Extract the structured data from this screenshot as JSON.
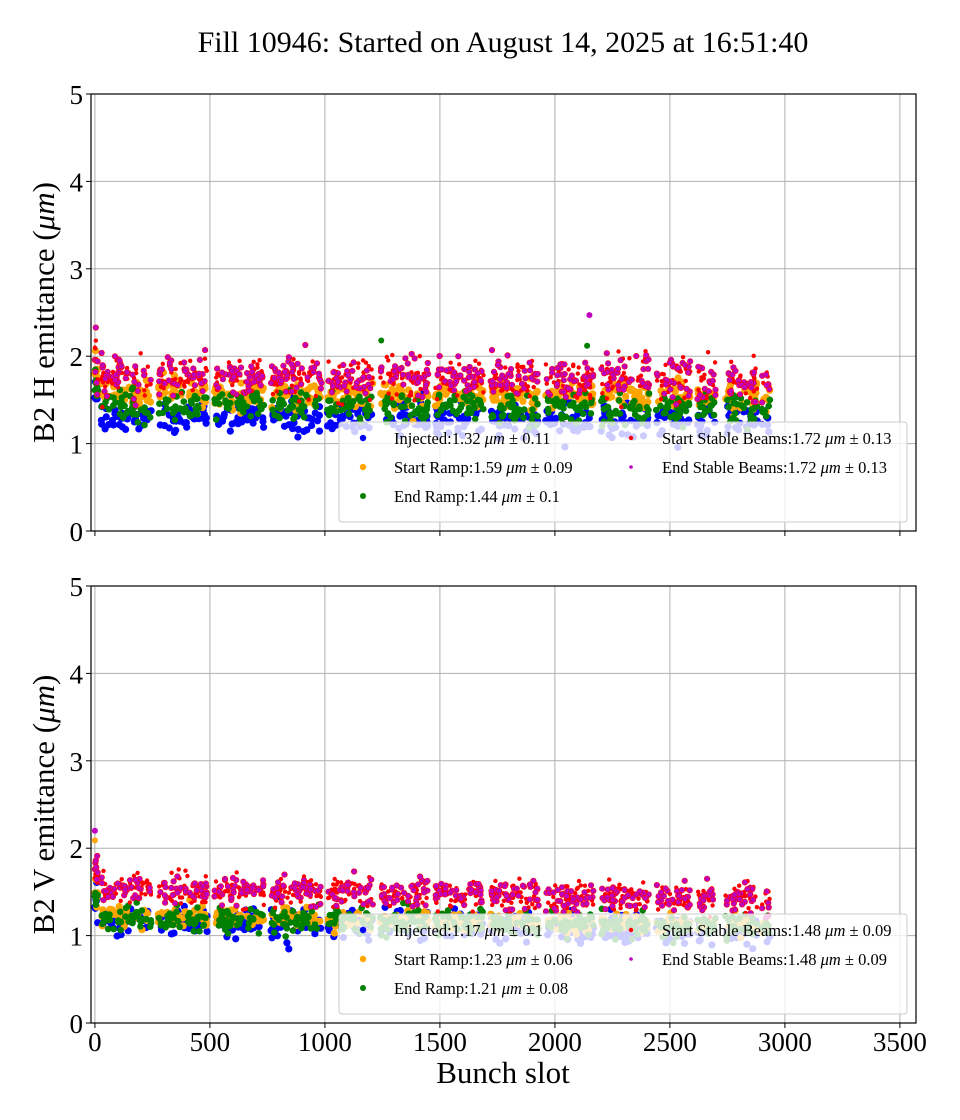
{
  "chart_data": [
    {
      "type": "scatter",
      "title": "Fill 10946: Started on August 14, 2025 at 16:51:40",
      "xlabel": "",
      "ylabel": "B2 H emittance (μm)",
      "ylabel_prefix": "B2 H emittance (",
      "ylabel_unit": "μm",
      "ylabel_suffix": ")",
      "xlim": [
        -17,
        3570
      ],
      "ylim": [
        0,
        5
      ],
      "xticks": [
        0,
        500,
        1000,
        1500,
        2000,
        2500,
        3000,
        3500
      ],
      "xtick_labels_visible": false,
      "yticks": [
        0,
        1,
        2,
        3,
        4,
        5
      ],
      "grid": true,
      "legend_position": "lower-right",
      "series": [
        {
          "name": "Injected",
          "legend_label": "Injected:1.32",
          "mean": 1.32,
          "std": 0.11,
          "unit": "μm",
          "color": "#0000ff"
        },
        {
          "name": "Start Ramp",
          "legend_label": "Start Ramp:1.59",
          "mean": 1.59,
          "std": 0.09,
          "unit": "μm",
          "color": "#ffa500"
        },
        {
          "name": "End Ramp",
          "legend_label": "End Ramp:1.44",
          "mean": 1.44,
          "std": 0.1,
          "unit": "μm",
          "color": "#008000"
        },
        {
          "name": "Start Stable Beams",
          "legend_label": "Start Stable Beams:1.72",
          "mean": 1.72,
          "std": 0.13,
          "unit": "μm",
          "color": "#ff0000"
        },
        {
          "name": "End Stable Beams",
          "legend_label": "End Stable Beams:1.72",
          "mean": 1.72,
          "std": 0.13,
          "unit": "μm",
          "color": "#bf00bf"
        }
      ],
      "outliers": [
        {
          "series": "End Stable Beams",
          "x": 2150,
          "y": 2.47
        },
        {
          "series": "End Ramp",
          "x": 1245,
          "y": 2.18
        },
        {
          "series": "End Ramp",
          "x": 2140,
          "y": 2.12
        }
      ]
    },
    {
      "type": "scatter",
      "title": "",
      "xlabel": "Bunch slot",
      "ylabel": "B2 V emittance (μm)",
      "ylabel_prefix": "B2 V emittance (",
      "ylabel_unit": "μm",
      "ylabel_suffix": ")",
      "xlim": [
        -17,
        3570
      ],
      "ylim": [
        0,
        5
      ],
      "xticks": [
        0,
        500,
        1000,
        1500,
        2000,
        2500,
        3000,
        3500
      ],
      "xtick_labels": [
        "0",
        "500",
        "1000",
        "1500",
        "2000",
        "2500",
        "3000",
        "3500"
      ],
      "yticks": [
        0,
        1,
        2,
        3,
        4,
        5
      ],
      "grid": true,
      "legend_position": "lower-right",
      "series": [
        {
          "name": "Injected",
          "legend_label": "Injected:1.17",
          "mean": 1.17,
          "std": 0.1,
          "unit": "μm",
          "color": "#0000ff"
        },
        {
          "name": "Start Ramp",
          "legend_label": "Start Ramp:1.23",
          "mean": 1.23,
          "std": 0.06,
          "unit": "μm",
          "color": "#ffa500"
        },
        {
          "name": "End Ramp",
          "legend_label": "End Ramp:1.21",
          "mean": 1.21,
          "std": 0.08,
          "unit": "μm",
          "color": "#008000"
        },
        {
          "name": "Start Stable Beams",
          "legend_label": "Start Stable Beams:1.48",
          "mean": 1.48,
          "std": 0.09,
          "unit": "μm",
          "color": "#ff0000"
        },
        {
          "name": "End Stable Beams",
          "legend_label": "End Stable Beams:1.48",
          "mean": 1.48,
          "std": 0.09,
          "unit": "μm",
          "color": "#bf00bf"
        }
      ],
      "outliers": [
        {
          "series": "End Stable Beams",
          "x": 0,
          "y": 2.2
        },
        {
          "series": "Start Ramp",
          "x": 0,
          "y": 2.09
        }
      ]
    }
  ],
  "bunch_trains": [
    [
      25,
      245
    ],
    [
      275,
      490
    ],
    [
      520,
      735
    ],
    [
      765,
      985
    ],
    [
      1010,
      1210
    ],
    [
      1240,
      1450
    ],
    [
      1480,
      1690
    ],
    [
      1720,
      1930
    ],
    [
      1960,
      2170
    ],
    [
      2200,
      2410
    ],
    [
      2440,
      2590
    ],
    [
      2620,
      2700
    ],
    [
      2740,
      2880
    ],
    [
      2900,
      2935
    ]
  ],
  "pilot_bunches": [
    0,
    2,
    4,
    6,
    8,
    10,
    12
  ]
}
